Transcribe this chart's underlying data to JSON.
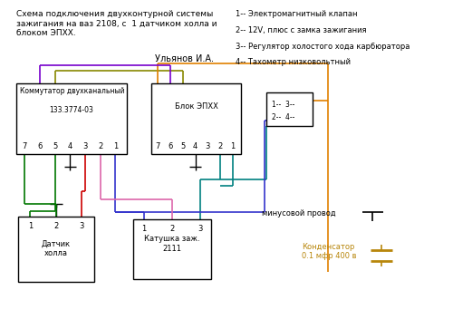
{
  "title": "Схема подключения двухконтурной системы\nзажигания на ваз 2108, с  1 датчиком холла и\nблоком ЭПХХ.",
  "author": "Ульянов И.А.",
  "legend_items": [
    "1-- Электромагнитный клапан",
    "2-- 12V, плюс с замка зажигания",
    "3-- Регулятор холостого хода карбюратора",
    "4-- Тахометр низковольтный"
  ],
  "bg_color": "#ffffff",
  "text_color": "#000000",
  "wire_green": "#007700",
  "wire_orange": "#E08000",
  "wire_teal": "#008080",
  "wire_blue": "#3333CC",
  "wire_red": "#CC0000",
  "wire_pink": "#DD66AA",
  "wire_olive": "#888800",
  "wire_purple": "#7700CC",
  "wire_darkblue": "#000088",
  "kond_color": "#B8860B"
}
